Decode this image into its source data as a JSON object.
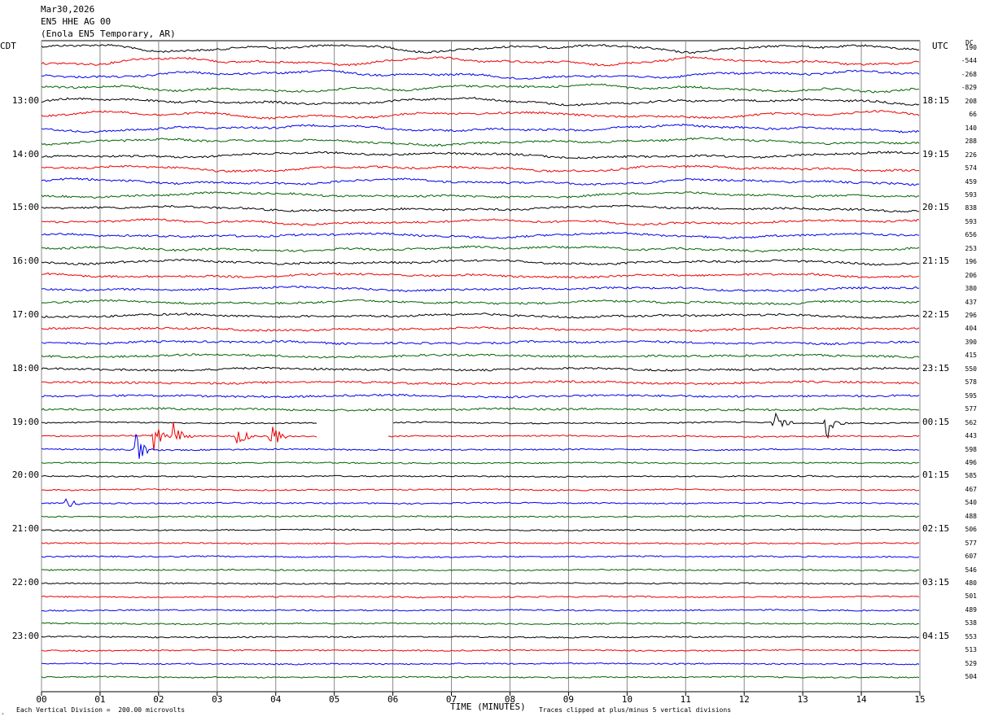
{
  "header": {
    "date": "Mar30,2026",
    "channel": "EN5 HHE AG 00",
    "station": "(Enola EN5 Temporary, AR)"
  },
  "left_timezone": "CDT",
  "right_timezone": "UTC",
  "dc_label": "DC",
  "footer": {
    "scale_note": "Each Vertical Division =  200.00 microvolts",
    "clip_note": "Traces clipped at plus/minus 5 vertical divisions",
    "corner_mark": "‸"
  },
  "chart_data": {
    "type": "line",
    "title": "",
    "xlabel": "TIME (MINUTES)",
    "ylabel": "",
    "x_ticks": [
      "00",
      "01",
      "02",
      "03",
      "04",
      "05",
      "06",
      "07",
      "08",
      "09",
      "10",
      "11",
      "12",
      "13",
      "14",
      "15"
    ],
    "xlim": [
      0,
      15
    ],
    "grid": true,
    "series_colors": [
      "#000000",
      "#ee0000",
      "#0000ee",
      "#006400"
    ],
    "left_hour_labels": [
      "13:00",
      "14:00",
      "15:00",
      "16:00",
      "17:00",
      "18:00",
      "19:00",
      "20:00",
      "21:00",
      "22:00",
      "23:00"
    ],
    "right_hour_labels": [
      "18:15",
      "19:15",
      "20:15",
      "21:15",
      "22:15",
      "23:15",
      "00:15",
      "01:15",
      "02:15",
      "03:15",
      "04:15"
    ],
    "dc_offsets": [
      "190",
      "-544",
      "-268",
      "-829",
      "208",
      "66",
      "140",
      "288",
      "226",
      "574",
      "459",
      "593",
      "838",
      "593",
      "656",
      "253",
      "196",
      "206",
      "380",
      "437",
      "296",
      "404",
      "390",
      "415",
      "550",
      "578",
      "595",
      "577",
      "562",
      "443",
      "598",
      "496",
      "585",
      "467",
      "540",
      "488",
      "506",
      "577",
      "607",
      "546",
      "480",
      "501",
      "489",
      "538",
      "553",
      "513",
      "529",
      "504"
    ],
    "events": [
      {
        "trace": 28,
        "minute": 12.5,
        "label": ""
      },
      {
        "trace": 28,
        "minute": 13.4,
        "label": ""
      },
      {
        "trace": 29,
        "minute": 1.9,
        "label": ""
      },
      {
        "trace": 29,
        "minute": 2.25,
        "label": ""
      },
      {
        "trace": 29,
        "minute": 3.3,
        "label": ""
      },
      {
        "trace": 29,
        "minute": 3.9,
        "label": ""
      },
      {
        "trace": 30,
        "minute": 1.6,
        "label": ""
      },
      {
        "trace": 34,
        "minute": 0.4,
        "label": ""
      }
    ],
    "gap": {
      "trace": 28,
      "start_minute": 4.7,
      "end_minute": 6.0
    }
  }
}
